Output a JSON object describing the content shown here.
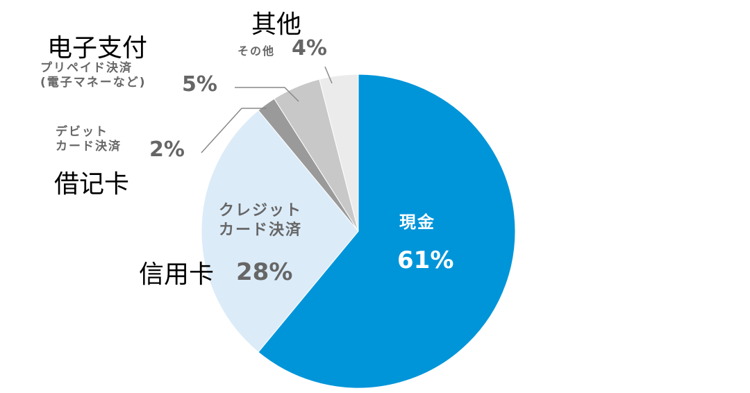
{
  "chart_data": {
    "type": "pie",
    "categories": [
      "現金",
      "クレジット\nカード決済",
      "デビット\nカード決済",
      "プリペイド決済\n(電子マネーなど)",
      "その他"
    ],
    "values": [
      61,
      28,
      2,
      5,
      4
    ],
    "value_labels": [
      "61%",
      "28%",
      "2%",
      "5%",
      "4%"
    ],
    "annotations": [
      null,
      "信用卡",
      "借记卡",
      "电子支付",
      "其他"
    ],
    "colors": [
      "#0095d9",
      "#dcebf8",
      "#9a9a9a",
      "#c8c8c8",
      "#ebebeb"
    ]
  }
}
